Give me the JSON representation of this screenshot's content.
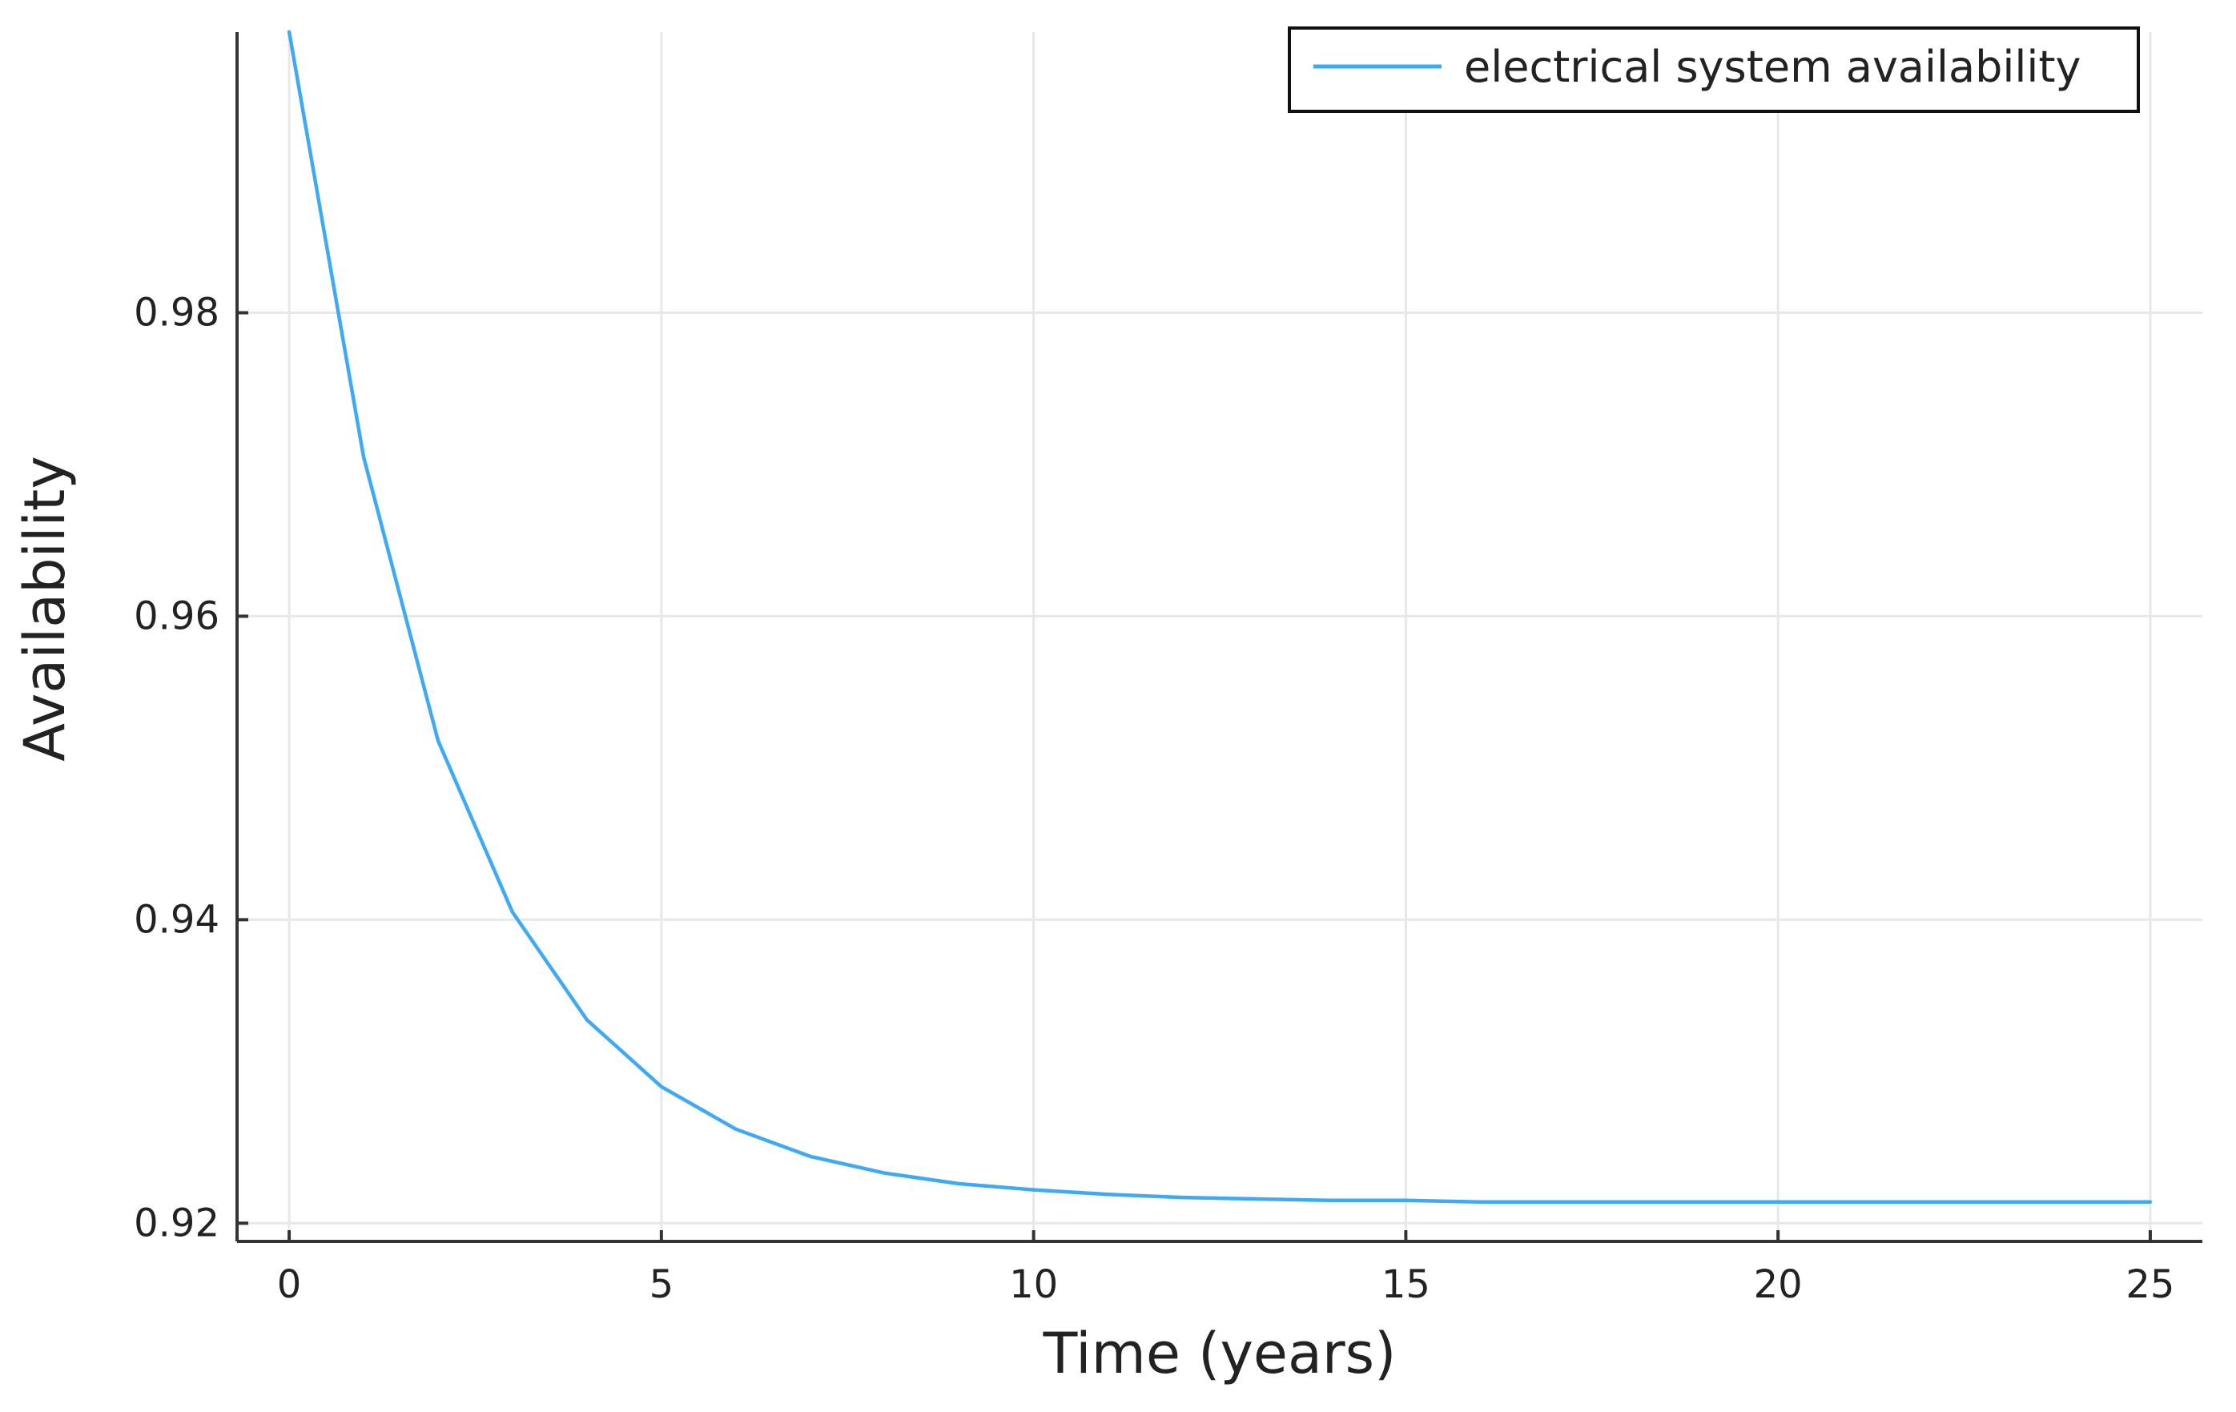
{
  "chart_data": {
    "type": "line",
    "title": "",
    "xlabel": "Time (years)",
    "ylabel": "Availability",
    "xlim": [
      -0.7,
      25.7
    ],
    "ylim": [
      0.9188,
      0.9985
    ],
    "xticks": [
      0,
      5,
      10,
      15,
      20,
      25
    ],
    "xtick_labels": [
      "0",
      "5",
      "10",
      "15",
      "20",
      "25"
    ],
    "yticks": [
      0.92,
      0.94,
      0.96,
      0.98
    ],
    "ytick_labels": [
      "0.92",
      "0.94",
      "0.96",
      "0.98"
    ],
    "grid": true,
    "legend_position": "top-right",
    "series": [
      {
        "name": "electrical system availability",
        "color": "#3EA9F5",
        "x": [
          0,
          1,
          2,
          3,
          4,
          5,
          6,
          7,
          8,
          9,
          10,
          11,
          12,
          13,
          14,
          15,
          16,
          17,
          18,
          19,
          20,
          21,
          22,
          23,
          24,
          25
        ],
        "y": [
          0.999,
          0.9705,
          0.9518,
          0.9405,
          0.9334,
          0.929,
          0.9262,
          0.9244,
          0.9233,
          0.9226,
          0.9222,
          0.9219,
          0.9217,
          0.9216,
          0.9215,
          0.9215,
          0.9214,
          0.9214,
          0.9214,
          0.9214,
          0.9214,
          0.9214,
          0.9214,
          0.9214,
          0.9214,
          0.9214
        ]
      }
    ]
  }
}
